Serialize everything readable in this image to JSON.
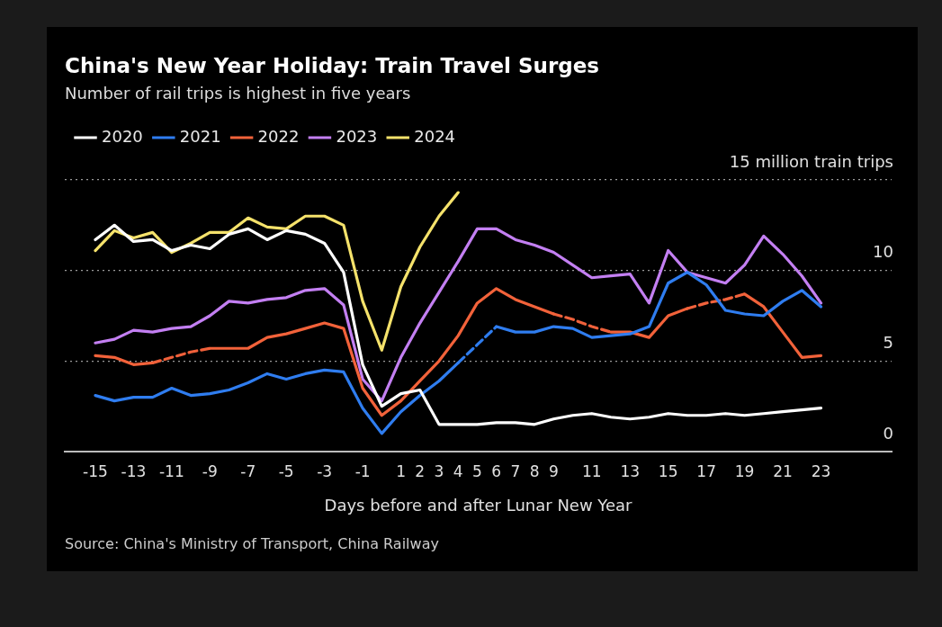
{
  "chart_data": {
    "type": "line",
    "title": "China's New Year Holiday: Train Travel Surges",
    "subtitle": "Number of rail trips is highest in five years",
    "xlabel": "Days before and after Lunar New Year",
    "annotations": [
      "Source: China's Ministry of Transport, China Railway"
    ],
    "x": [
      -15,
      -14,
      -13,
      -12,
      -11,
      -10,
      -9,
      -8,
      -7,
      -6,
      -5,
      -4,
      -3,
      -2,
      -1,
      0,
      1,
      2,
      3,
      4,
      5,
      6,
      7,
      8,
      9,
      10,
      11,
      12,
      13,
      14,
      15,
      16,
      17,
      18,
      19,
      20,
      21,
      22,
      23
    ],
    "series": [
      {
        "name": "2020",
        "color": "#ffffff",
        "values": [
          11.7,
          12.5,
          11.6,
          11.7,
          11.1,
          11.4,
          11.2,
          12.0,
          12.3,
          11.7,
          12.2,
          12.0,
          11.5,
          9.9,
          4.8,
          2.5,
          3.2,
          3.4,
          1.5,
          1.5,
          1.5,
          1.6,
          1.6,
          1.5,
          1.8,
          2.0,
          2.1,
          1.9,
          1.8,
          1.9,
          2.1,
          2.0,
          2.0,
          2.1,
          2.0,
          2.1,
          2.2,
          2.3,
          2.4
        ]
      },
      {
        "name": "2021",
        "color": "#2f7df0",
        "values": [
          3.1,
          2.8,
          3.0,
          3.0,
          3.5,
          3.1,
          3.2,
          3.4,
          3.8,
          4.3,
          4.0,
          4.3,
          4.5,
          4.4,
          2.4,
          1.0,
          2.2,
          3.1,
          3.9,
          4.9,
          null,
          6.9,
          6.6,
          6.6,
          6.9,
          6.8,
          6.3,
          6.4,
          6.5,
          6.9,
          9.3,
          9.9,
          9.2,
          7.8,
          7.6,
          7.5,
          8.3,
          8.9,
          8.0
        ]
      },
      {
        "name": "2022",
        "color": "#f2623a",
        "values": [
          5.3,
          5.2,
          4.8,
          4.9,
          null,
          null,
          5.7,
          5.7,
          5.7,
          6.3,
          6.5,
          6.8,
          7.1,
          6.8,
          3.5,
          2.0,
          2.8,
          3.9,
          5.0,
          6.4,
          8.2,
          9.0,
          8.4,
          8.0,
          7.6,
          null,
          null,
          6.6,
          6.6,
          6.3,
          7.5,
          7.9,
          null,
          null,
          8.7,
          8.0,
          6.6,
          5.2,
          5.3
        ]
      },
      {
        "name": "2023",
        "color": "#c37ff2",
        "values": [
          6.0,
          6.2,
          6.7,
          6.6,
          6.8,
          6.9,
          7.5,
          8.3,
          8.2,
          8.4,
          8.5,
          8.9,
          9.0,
          8.1,
          4.0,
          2.8,
          5.2,
          7.1,
          8.8,
          10.5,
          12.3,
          12.3,
          11.7,
          11.4,
          11.0,
          10.3,
          9.6,
          9.7,
          9.8,
          8.2,
          11.1,
          9.9,
          9.6,
          9.3,
          10.3,
          11.9,
          10.9,
          9.7,
          8.2
        ]
      },
      {
        "name": "2024",
        "color": "#f5e26b",
        "x": [
          -15,
          -14,
          -13,
          -12,
          -11,
          -10,
          -9,
          -8,
          -7,
          -6,
          -5,
          -4,
          -3,
          -2,
          -1,
          0,
          1,
          2,
          3,
          4
        ],
        "values": [
          11.1,
          12.2,
          11.8,
          12.1,
          11.0,
          11.5,
          12.1,
          12.1,
          12.9,
          12.4,
          12.3,
          13.0,
          13.0,
          12.5,
          8.3,
          5.6,
          9.1,
          11.3,
          13.0,
          14.3
        ]
      },
      {
        "color": "#2e7cee",
        "line_style": "dashed",
        "x": [
          4,
          5,
          6
        ],
        "values": [
          4.9,
          5.9,
          6.9
        ]
      },
      {
        "color": "#f0603a",
        "line_style": "dashed",
        "x": [
          -12,
          -11,
          -10,
          -9
        ],
        "values": [
          4.9,
          5.2,
          5.5,
          5.7
        ]
      },
      {
        "color": "#f0613b",
        "line_style": "dashed",
        "x": [
          9,
          10,
          11,
          12
        ],
        "values": [
          7.6,
          7.3,
          6.9,
          6.6
        ]
      },
      {
        "color": "#f1623c",
        "line_style": "dashed",
        "x": [
          16,
          17,
          18,
          19
        ],
        "values": [
          7.9,
          8.2,
          8.4,
          8.7
        ]
      }
    ],
    "xlim": [
      -16.6,
      26.7
    ],
    "xticks": [
      -15,
      -13,
      -11,
      -9,
      -7,
      -5,
      -3,
      -1,
      1,
      2,
      3,
      4,
      5,
      6,
      7,
      8,
      9,
      11,
      13,
      15,
      17,
      19,
      21,
      23
    ],
    "ylim": [
      0,
      15
    ],
    "yticks": [
      0,
      5,
      10,
      {
        "value": 15,
        "label": "15 million train trips"
      }
    ],
    "grid": "y",
    "legend": "top left",
    "line_style": "solid"
  }
}
